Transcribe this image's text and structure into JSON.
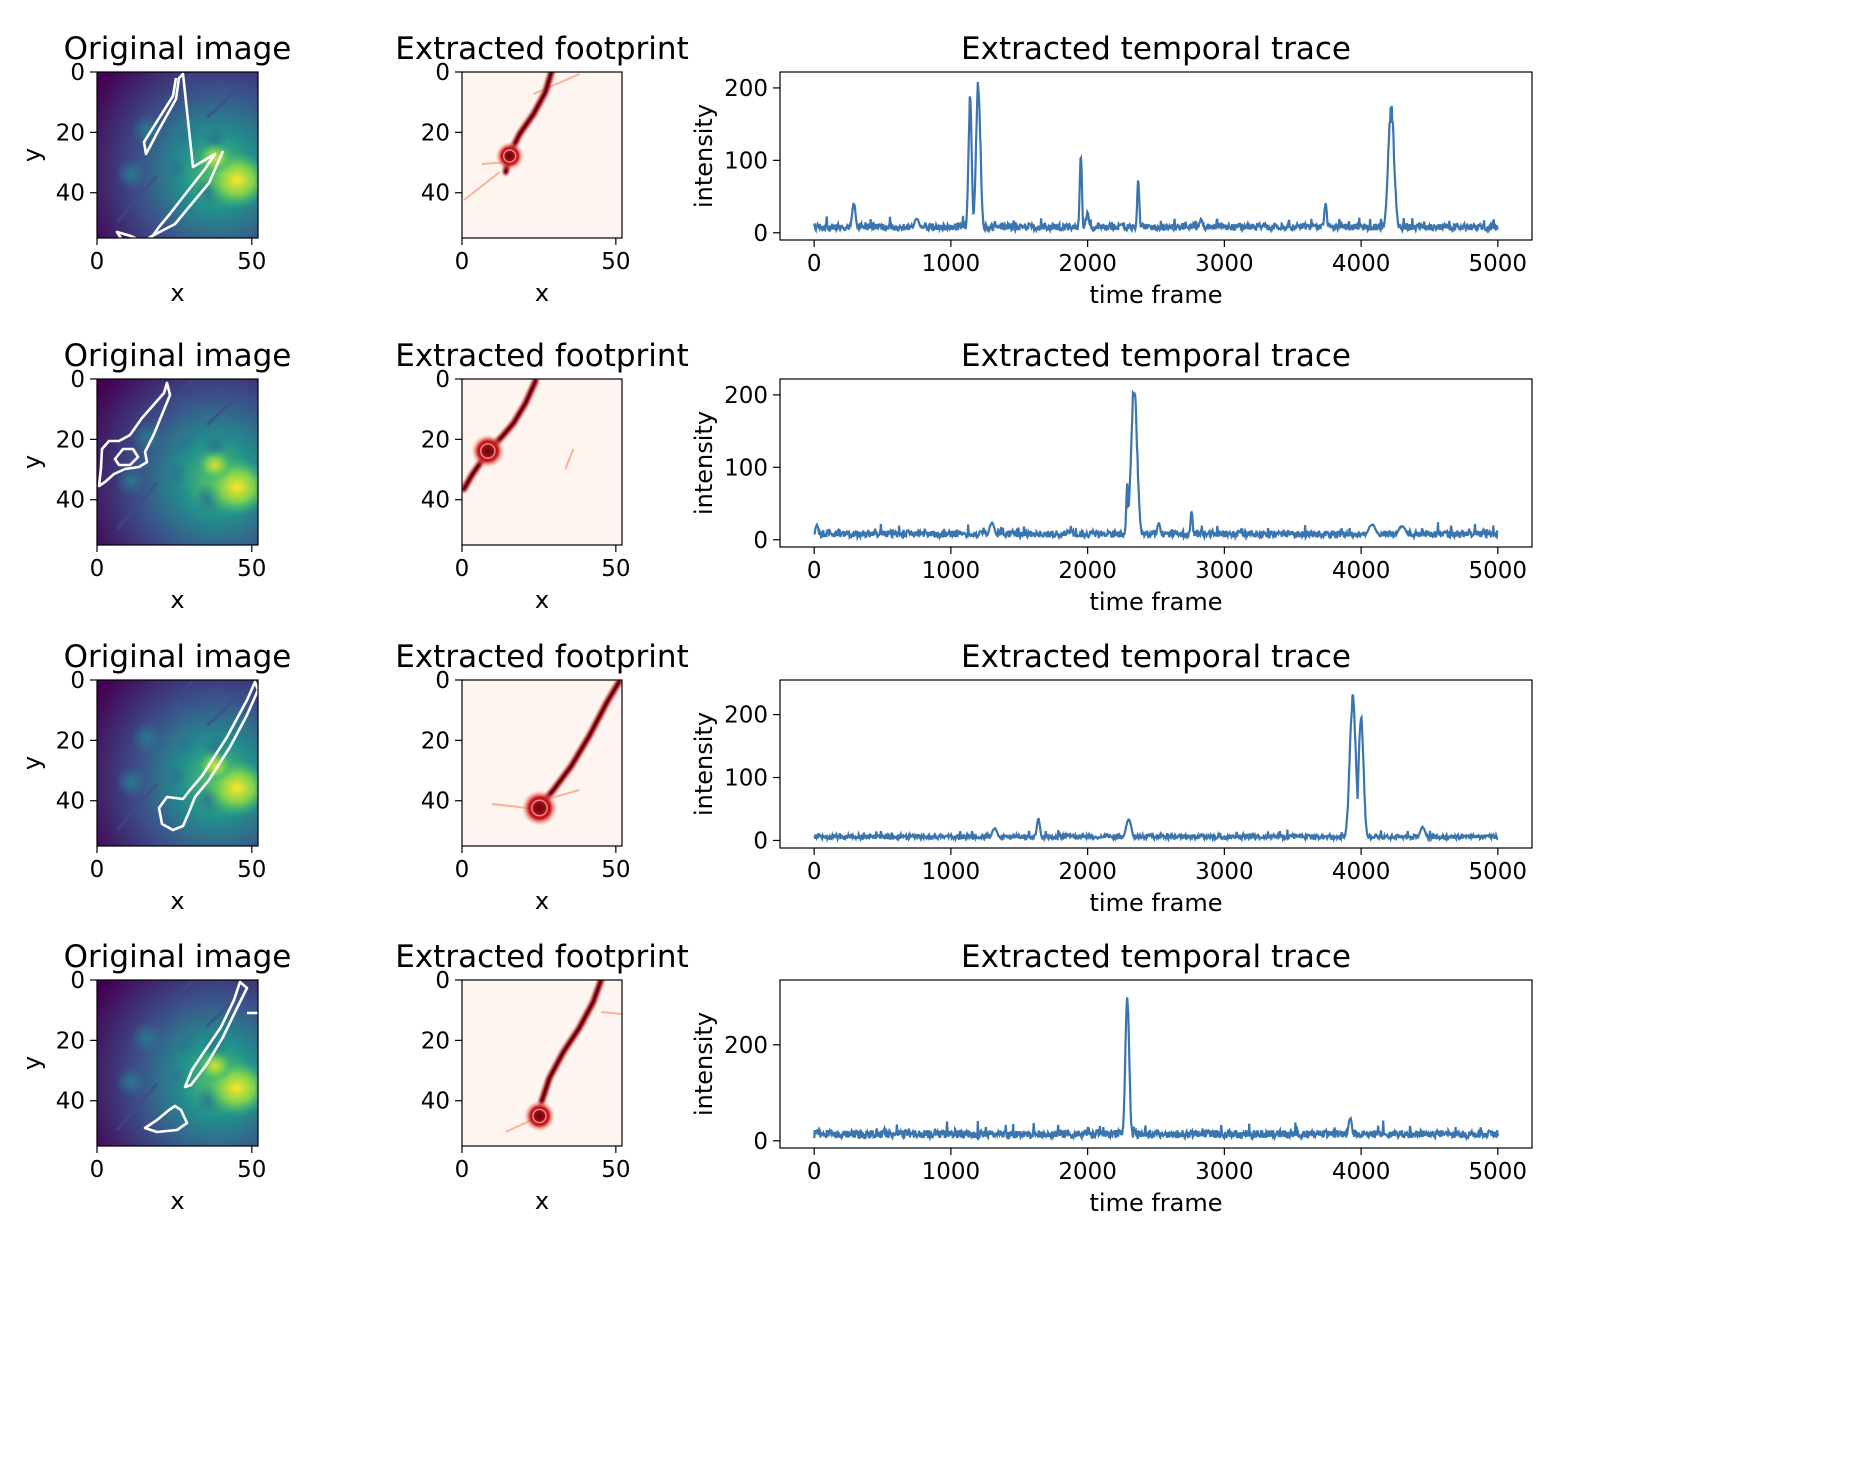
{
  "figure": {
    "col_titles": [
      "Original image",
      "Extracted footprint",
      "Extracted temporal trace"
    ]
  },
  "chart_data": [
    {
      "row": 1,
      "panels": [
        {
          "type": "heatmap",
          "title": "Original image",
          "colormap": "viridis",
          "xlabel": "x",
          "ylabel": "y",
          "xticks": [
            0,
            50
          ],
          "yticks": [
            0,
            20,
            40
          ],
          "xlim": [
            0,
            52
          ],
          "ylim": [
            55,
            0
          ],
          "contour_color": "#ffffff"
        },
        {
          "type": "heatmap",
          "title": "Extracted footprint",
          "colormap": "Reds",
          "xlabel": "x",
          "xticks": [
            0,
            50
          ],
          "yticks": [
            0,
            20,
            40
          ],
          "xlim": [
            0,
            52
          ],
          "ylim": [
            55,
            0
          ]
        },
        {
          "type": "line",
          "title": "Extracted temporal trace",
          "xlabel": "time frame",
          "ylabel": "intensity",
          "xlim": [
            -250,
            5250
          ],
          "ylim": [
            -10,
            222
          ],
          "xticks": [
            0,
            1000,
            2000,
            3000,
            4000,
            5000
          ],
          "yticks": [
            0,
            100,
            200
          ],
          "color": "#3b75af",
          "baseline": 8,
          "peaks": [
            [
              290,
              42,
              14
            ],
            [
              750,
              20,
              20
            ],
            [
              1140,
              190,
              12
            ],
            [
              1200,
              213,
              16
            ],
            [
              1950,
              117,
              8
            ],
            [
              2000,
              30,
              10
            ],
            [
              2370,
              76,
              8
            ],
            [
              2830,
              20,
              14
            ],
            [
              3740,
              42,
              10
            ],
            [
              4220,
              180,
              22
            ]
          ]
        }
      ]
    },
    {
      "row": 2,
      "panels": [
        {
          "type": "heatmap",
          "title": "Original image",
          "colormap": "viridis",
          "xlabel": "x",
          "ylabel": "y",
          "xticks": [
            0,
            50
          ],
          "yticks": [
            0,
            20,
            40
          ],
          "xlim": [
            0,
            52
          ],
          "ylim": [
            55,
            0
          ],
          "contour_color": "#ffffff"
        },
        {
          "type": "heatmap",
          "title": "Extracted footprint",
          "colormap": "Reds",
          "xlabel": "x",
          "xticks": [
            0,
            50
          ],
          "yticks": [
            0,
            20,
            40
          ],
          "xlim": [
            0,
            52
          ],
          "ylim": [
            55,
            0
          ]
        },
        {
          "type": "line",
          "title": "Extracted temporal trace",
          "xlabel": "time frame",
          "ylabel": "intensity",
          "xlim": [
            -250,
            5250
          ],
          "ylim": [
            -10,
            222
          ],
          "xticks": [
            0,
            1000,
            2000,
            3000,
            4000,
            5000
          ],
          "yticks": [
            0,
            100,
            200
          ],
          "color": "#3b75af",
          "baseline": 8,
          "peaks": [
            [
              20,
              22,
              12
            ],
            [
              1300,
              25,
              20
            ],
            [
              2290,
              80,
              8
            ],
            [
              2340,
              220,
              22
            ],
            [
              2520,
              25,
              12
            ],
            [
              2760,
              42,
              8
            ],
            [
              4080,
              22,
              30
            ],
            [
              4300,
              20,
              30
            ]
          ]
        }
      ]
    },
    {
      "row": 3,
      "panels": [
        {
          "type": "heatmap",
          "title": "Original image",
          "colormap": "viridis",
          "xlabel": "x",
          "ylabel": "y",
          "xticks": [
            0,
            50
          ],
          "yticks": [
            0,
            20,
            40
          ],
          "xlim": [
            0,
            52
          ],
          "ylim": [
            55,
            0
          ],
          "contour_color": "#ffffff"
        },
        {
          "type": "heatmap",
          "title": "Extracted footprint",
          "colormap": "Reds",
          "xlabel": "x",
          "xticks": [
            0,
            50
          ],
          "yticks": [
            0,
            20,
            40
          ],
          "xlim": [
            0,
            52
          ],
          "ylim": [
            55,
            0
          ]
        },
        {
          "type": "line",
          "title": "Extracted temporal trace",
          "xlabel": "time frame",
          "ylabel": "intensity",
          "xlim": [
            -250,
            5250
          ],
          "ylim": [
            -12,
            255
          ],
          "xticks": [
            0,
            1000,
            2000,
            3000,
            4000,
            5000
          ],
          "yticks": [
            0,
            100,
            200
          ],
          "color": "#3b75af",
          "baseline": 6,
          "peaks": [
            [
              1320,
              20,
              20
            ],
            [
              1640,
              36,
              12
            ],
            [
              2300,
              35,
              20
            ],
            [
              3940,
              240,
              22
            ],
            [
              4000,
              205,
              18
            ],
            [
              4450,
              22,
              20
            ]
          ]
        }
      ]
    },
    {
      "row": 4,
      "panels": [
        {
          "type": "heatmap",
          "title": "Original image",
          "colormap": "viridis",
          "xlabel": "x",
          "ylabel": "y",
          "xticks": [
            0,
            50
          ],
          "yticks": [
            0,
            20,
            40
          ],
          "xlim": [
            0,
            52
          ],
          "ylim": [
            55,
            0
          ],
          "contour_color": "#ffffff"
        },
        {
          "type": "heatmap",
          "title": "Extracted footprint",
          "colormap": "Reds",
          "xlabel": "x",
          "xticks": [
            0,
            50
          ],
          "yticks": [
            0,
            20,
            40
          ],
          "xlim": [
            0,
            52
          ],
          "ylim": [
            55,
            0
          ]
        },
        {
          "type": "line",
          "title": "Extracted temporal trace",
          "xlabel": "time frame",
          "ylabel": "intensity",
          "xlim": [
            -250,
            5250
          ],
          "ylim": [
            -15,
            335
          ],
          "xticks": [
            0,
            1000,
            2000,
            3000,
            4000,
            5000
          ],
          "yticks": [
            0,
            200
          ],
          "color": "#3b75af",
          "baseline": 14,
          "peaks": [
            [
              2290,
              315,
              14
            ],
            [
              2880,
              20,
              12
            ],
            [
              3920,
              50,
              14
            ]
          ]
        }
      ]
    }
  ]
}
